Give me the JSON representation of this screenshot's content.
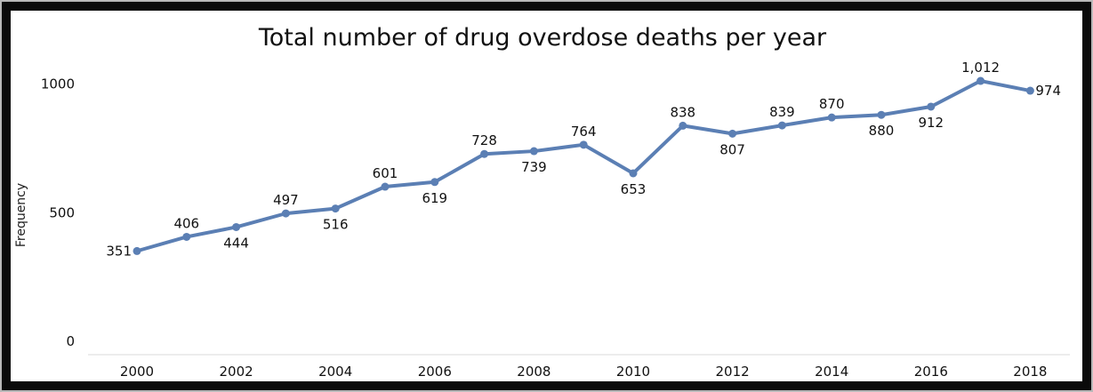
{
  "chart_data": {
    "type": "line",
    "title": "Total number of drug overdose deaths per year",
    "xlabel": "",
    "ylabel": "Frequency",
    "x": [
      2000,
      2001,
      2002,
      2003,
      2004,
      2005,
      2006,
      2007,
      2008,
      2009,
      2010,
      2011,
      2012,
      2013,
      2014,
      2015,
      2016,
      2017,
      2018
    ],
    "values": [
      351,
      406,
      444,
      497,
      516,
      601,
      619,
      728,
      739,
      764,
      653,
      838,
      807,
      839,
      870,
      880,
      912,
      1012,
      974
    ],
    "value_labels": [
      "351",
      "406",
      "444",
      "497",
      "516",
      "601",
      "619",
      "728",
      "739",
      "764",
      "653",
      "838",
      "807",
      "839",
      "870",
      "880",
      "912",
      "1,012",
      "974"
    ],
    "x_ticks": [
      "2000",
      "2002",
      "2004",
      "2006",
      "2008",
      "2010",
      "2012",
      "2014",
      "2016",
      "2018"
    ],
    "y_ticks": [
      "0",
      "500",
      "1000"
    ],
    "ylim": [
      0,
      1000
    ],
    "grid": false,
    "line_color": "#5b7fb4"
  }
}
